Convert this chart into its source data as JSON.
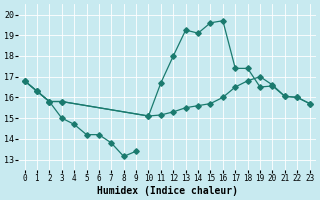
{
  "xlabel": "Humidex (Indice chaleur)",
  "bg_color": "#c8eaf0",
  "line_color": "#1a7a6e",
  "xlim": [
    -0.5,
    23.5
  ],
  "ylim": [
    12.5,
    20.5
  ],
  "yticks": [
    13,
    14,
    15,
    16,
    17,
    18,
    19,
    20
  ],
  "xticks": [
    0,
    1,
    2,
    3,
    4,
    5,
    6,
    7,
    8,
    9,
    10,
    11,
    12,
    13,
    14,
    15,
    16,
    17,
    18,
    19,
    20,
    21,
    22,
    23
  ],
  "line_bottom_x": [
    0,
    1,
    2,
    3,
    4,
    5,
    6,
    7,
    8,
    9
  ],
  "line_bottom_y": [
    16.8,
    16.3,
    15.8,
    15.0,
    14.7,
    14.2,
    14.2,
    13.8,
    13.15,
    13.4
  ],
  "line_top_x": [
    0,
    1,
    2,
    3,
    10,
    11,
    12,
    13,
    14,
    15,
    16,
    17,
    18,
    19,
    20,
    21,
    22,
    23
  ],
  "line_top_y": [
    16.8,
    16.3,
    15.8,
    15.8,
    15.1,
    16.7,
    18.0,
    19.25,
    19.1,
    19.6,
    19.7,
    17.4,
    17.4,
    16.5,
    16.55,
    16.05,
    16.0,
    15.7
  ],
  "line_mid_x": [
    0,
    1,
    2,
    3,
    10,
    11,
    12,
    13,
    14,
    15,
    16,
    17,
    18,
    19,
    20,
    21,
    22,
    23
  ],
  "line_mid_y": [
    16.8,
    16.3,
    15.8,
    15.8,
    15.1,
    15.15,
    15.3,
    15.5,
    15.6,
    15.7,
    16.0,
    16.5,
    16.8,
    17.0,
    16.6,
    16.05,
    16.0,
    15.7
  ]
}
